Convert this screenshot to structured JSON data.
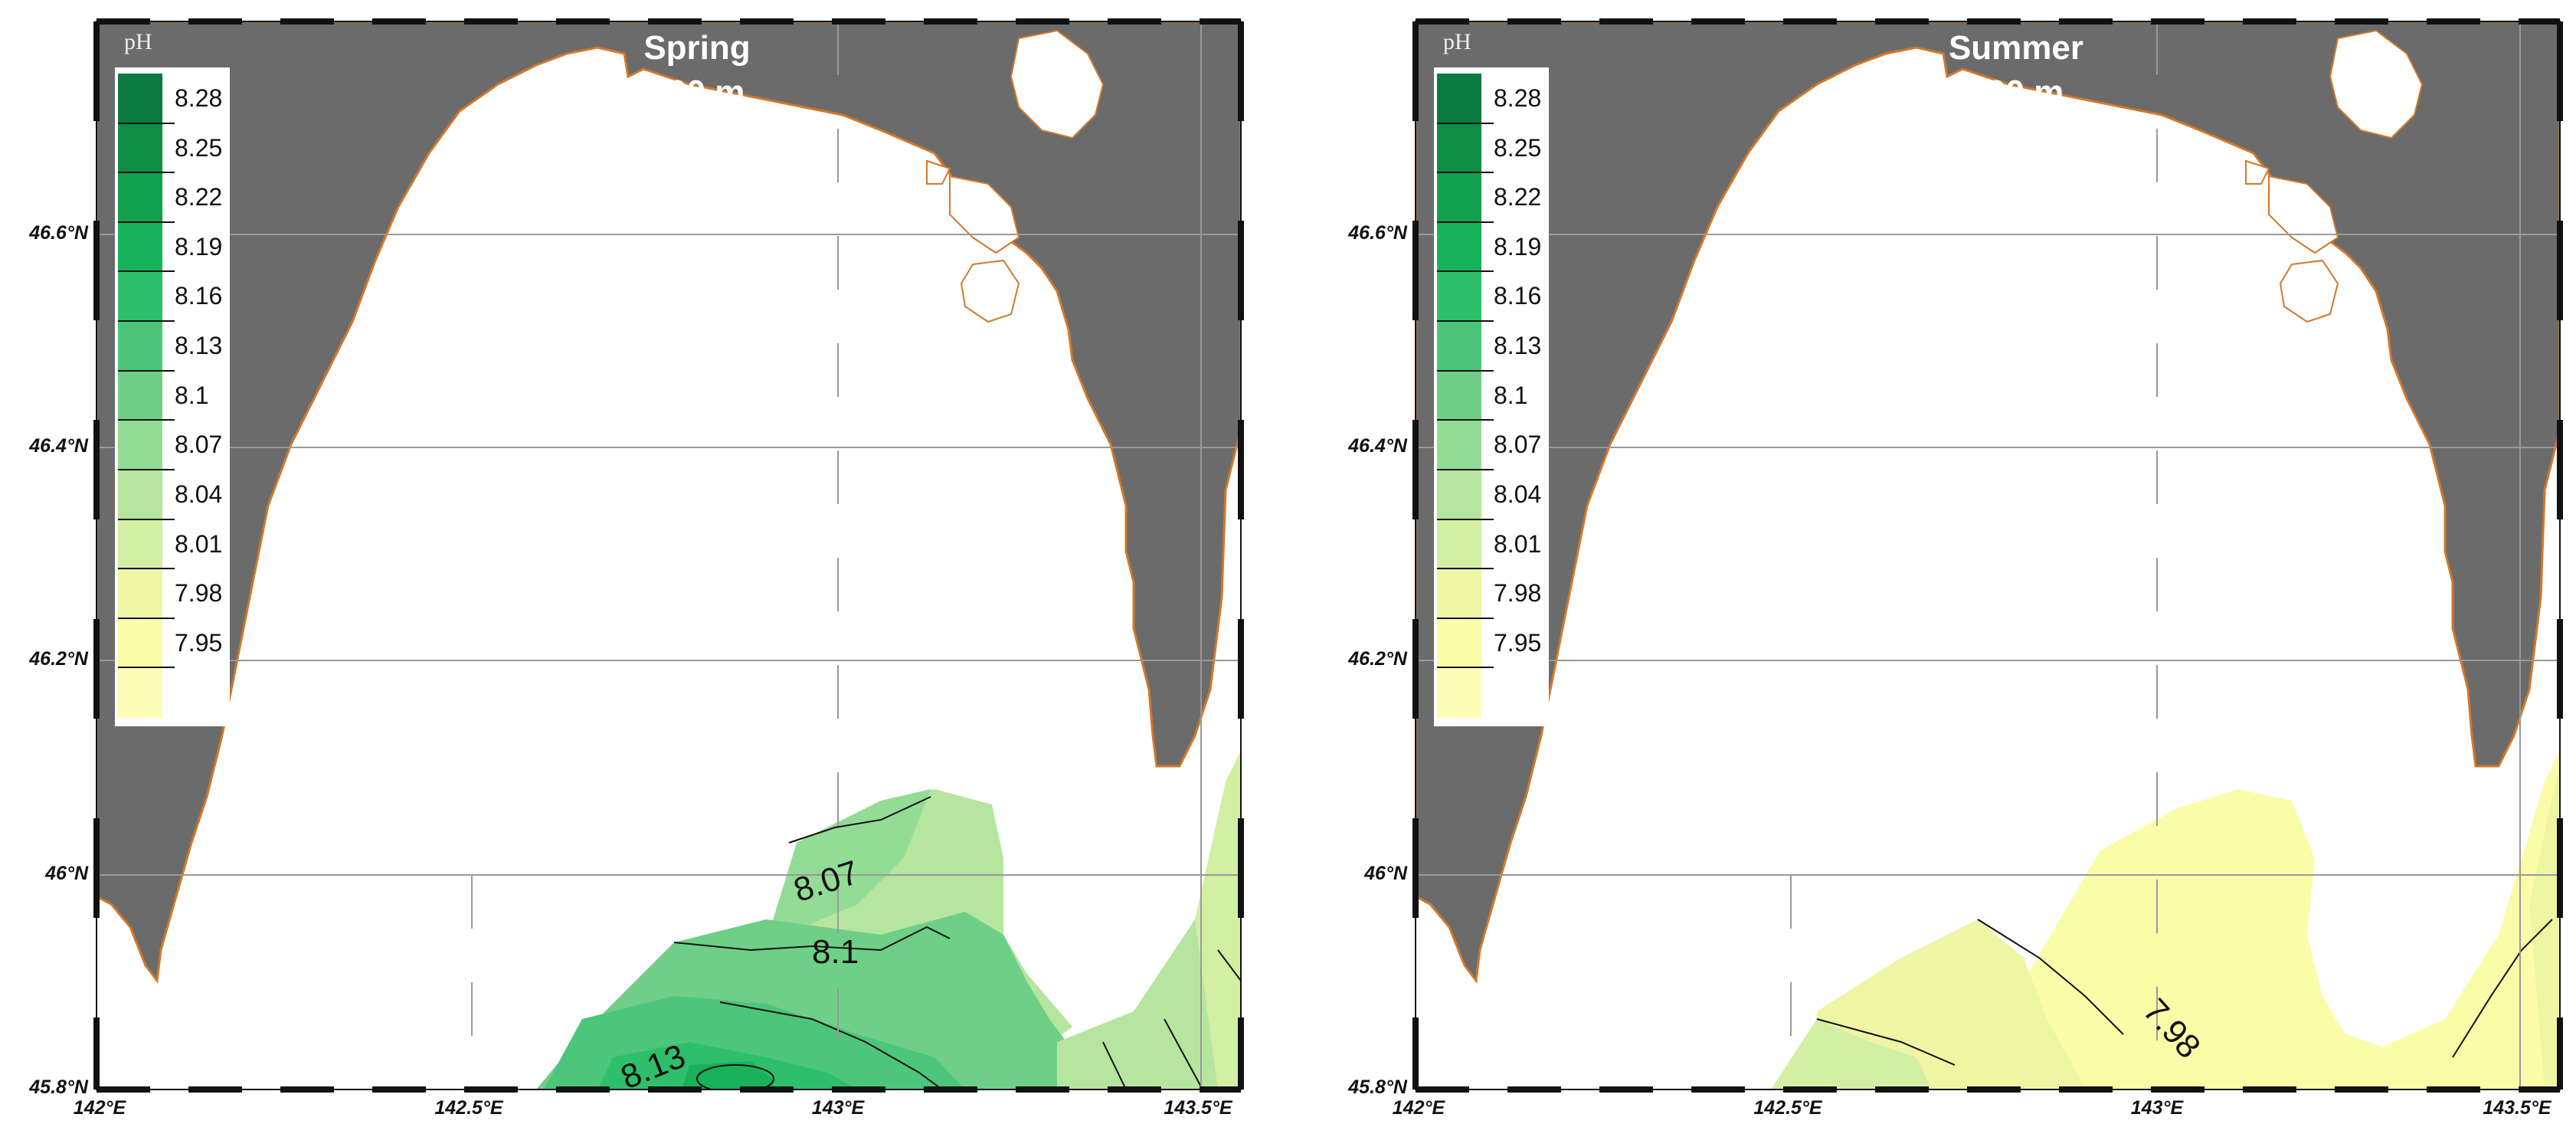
{
  "legend": {
    "title": "pH",
    "levels": [
      "8.28",
      "8.25",
      "8.22",
      "8.19",
      "8.16",
      "8.13",
      "8.1",
      "8.07",
      "8.04",
      "8.01",
      "7.98",
      "7.95"
    ],
    "colors": [
      "#0b7a3e",
      "#0f8d45",
      "#11a04d",
      "#17b25a",
      "#2fbf6a",
      "#4cc67a",
      "#6fcf87",
      "#93dc95",
      "#b6e59f",
      "#d3efa3",
      "#eef6a4",
      "#fbfca8",
      "#fdfdb8"
    ]
  },
  "axes": {
    "lat_labels": [
      "46.6°N",
      "46.4°N",
      "46.2°N",
      "46°N",
      "45.8°N"
    ],
    "lon_labels": [
      "142°E",
      "142.5°E",
      "143°E",
      "143.5°E"
    ]
  },
  "panels": [
    {
      "id": "spring",
      "title_line1": "Spring",
      "title_line2": "100 m",
      "contour_labels": [
        "8.07",
        "8.1",
        "8.13"
      ]
    },
    {
      "id": "summer",
      "title_line1": "Summer",
      "title_line2": "100 m",
      "contour_labels": [
        "7.98"
      ]
    }
  ],
  "colors": {
    "land": "#6b6b6b",
    "coast": "#d2782a",
    "sea": "#ffffff",
    "grid": "#999999"
  }
}
